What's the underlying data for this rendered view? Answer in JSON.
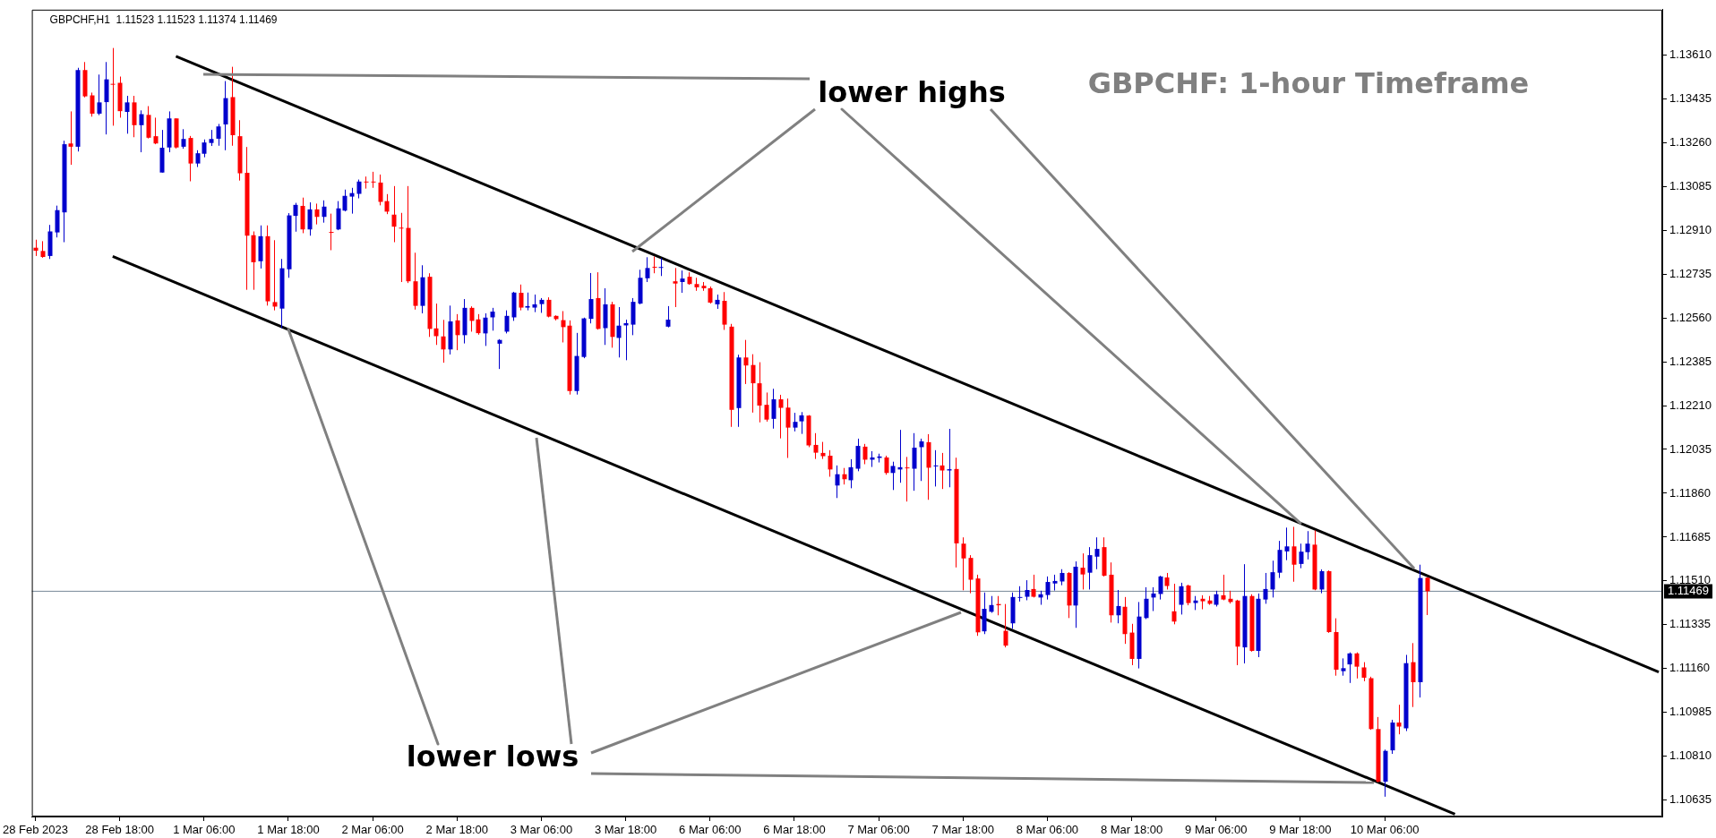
{
  "chart_data": {
    "type": "candlestick",
    "title": "GBPCHF: 1-hour Timeframe",
    "subtitle": "GBPCHF,H1  1.11523 1.11523 1.11374 1.11469",
    "annotations": [
      {
        "text": "lower highs",
        "x": "9 Mar 18:00",
        "y": 1.11741
      },
      {
        "text": "lower lows",
        "x": "1 Mar 18:00",
        "y": 1.12515
      }
    ],
    "categories": [
      "28 Feb 2023",
      null,
      null,
      null,
      null,
      null,
      null,
      null,
      null,
      null,
      null,
      null,
      "28 Feb 18:00",
      null,
      null,
      null,
      null,
      null,
      null,
      null,
      null,
      null,
      null,
      null,
      "1 Mar 06:00",
      null,
      null,
      null,
      null,
      null,
      null,
      null,
      null,
      null,
      null,
      null,
      "1 Mar 18:00",
      null,
      null,
      null,
      null,
      null,
      null,
      null,
      null,
      null,
      null,
      null,
      "2 Mar 06:00",
      null,
      null,
      null,
      null,
      null,
      null,
      null,
      null,
      null,
      null,
      null,
      "2 Mar 18:00",
      null,
      null,
      null,
      null,
      null,
      null,
      null,
      null,
      null,
      null,
      null,
      "3 Mar 06:00",
      null,
      null,
      null,
      null,
      null,
      null,
      null,
      null,
      null,
      null,
      null,
      "3 Mar 18:00",
      null,
      null,
      null,
      null,
      null,
      null,
      null,
      null,
      null,
      null,
      null,
      "6 Mar 06:00",
      null,
      null,
      null,
      null,
      null,
      null,
      null,
      null,
      null,
      null,
      null,
      "6 Mar 18:00",
      null,
      null,
      null,
      null,
      null,
      null,
      null,
      null,
      null,
      null,
      null,
      "7 Mar 06:00",
      null,
      null,
      null,
      null,
      null,
      null,
      null,
      null,
      null,
      null,
      null,
      "7 Mar 18:00",
      null,
      null,
      null,
      null,
      null,
      null,
      null,
      null,
      null,
      null,
      null,
      "8 Mar 06:00",
      null,
      null,
      null,
      null,
      null,
      null,
      null,
      null,
      null,
      null,
      null,
      "8 Mar 18:00",
      null,
      null,
      null,
      null,
      null,
      null,
      null,
      null,
      null,
      null,
      null,
      "9 Mar 06:00",
      null,
      null,
      null,
      null,
      null,
      null,
      null,
      null,
      null,
      null,
      null,
      "9 Mar 18:00",
      null,
      null,
      null,
      null,
      null,
      null,
      null,
      null,
      null,
      null,
      null,
      "10 Mar 06:00",
      null,
      null,
      null,
      null,
      null,
      null,
      null,
      null,
      null,
      null,
      null,
      null,
      null,
      null,
      null,
      null,
      null,
      null,
      null,
      null,
      null,
      null,
      null,
      null,
      null,
      null,
      null,
      null,
      null,
      null,
      null,
      null,
      null,
      null,
      null,
      null,
      null,
      null,
      null
    ],
    "ohlc": [
      [
        1.1284,
        1.12872,
        1.12807,
        1.12828
      ],
      [
        1.12827,
        1.12866,
        1.128,
        1.12803
      ],
      [
        1.12807,
        1.12931,
        1.12795,
        1.12905
      ],
      [
        1.12901,
        1.13008,
        1.12881,
        1.1299
      ],
      [
        1.12981,
        1.13267,
        1.12862,
        1.13253
      ],
      [
        1.13256,
        1.13384,
        1.13171,
        1.13243
      ],
      [
        1.13243,
        1.13558,
        1.13224,
        1.13549
      ],
      [
        1.13549,
        1.13581,
        1.1344,
        1.13444
      ],
      [
        1.13448,
        1.13459,
        1.13363,
        1.13375
      ],
      [
        1.13375,
        1.13531,
        1.13369,
        1.1342
      ],
      [
        1.13421,
        1.13581,
        1.13292,
        1.13512
      ],
      [
        1.13494,
        1.13637,
        1.13327,
        1.13492
      ],
      [
        1.13498,
        1.13523,
        1.13359,
        1.13385
      ],
      [
        1.13382,
        1.13446,
        1.13295,
        1.1342
      ],
      [
        1.1342,
        1.13446,
        1.13281,
        1.13329
      ],
      [
        1.13329,
        1.13388,
        1.13221,
        1.13373
      ],
      [
        1.1337,
        1.13405,
        1.13276,
        1.13279
      ],
      [
        1.13285,
        1.13359,
        1.13253,
        1.13256
      ],
      [
        1.1314,
        1.1331,
        1.1314,
        1.13239
      ],
      [
        1.1324,
        1.13384,
        1.13221,
        1.13356
      ],
      [
        1.13356,
        1.13356,
        1.13236,
        1.1324
      ],
      [
        1.13243,
        1.13313,
        1.13235,
        1.13274
      ],
      [
        1.13278,
        1.13286,
        1.13105,
        1.13176
      ],
      [
        1.13176,
        1.13229,
        1.13162,
        1.13217
      ],
      [
        1.13215,
        1.13272,
        1.13201,
        1.1326
      ],
      [
        1.13258,
        1.1331,
        1.13246,
        1.13274
      ],
      [
        1.13275,
        1.13334,
        1.13247,
        1.13324
      ],
      [
        1.13332,
        1.13505,
        1.13229,
        1.13437
      ],
      [
        1.13441,
        1.13562,
        1.13247,
        1.13289
      ],
      [
        1.13285,
        1.13349,
        1.13108,
        1.13137
      ],
      [
        1.13139,
        1.13242,
        1.12672,
        1.12888
      ],
      [
        1.1289,
        1.12905,
        1.12672,
        1.12782
      ],
      [
        1.12786,
        1.12929,
        1.12757,
        1.12886
      ],
      [
        1.12886,
        1.12929,
        1.12609,
        1.12626
      ],
      [
        1.12623,
        1.1287,
        1.1259,
        1.12605
      ],
      [
        1.12597,
        1.12795,
        1.12519,
        1.12758
      ],
      [
        1.12754,
        1.12978,
        1.1272,
        1.12969
      ],
      [
        1.12967,
        1.13019,
        1.12904,
        1.13011
      ],
      [
        1.13007,
        1.1304,
        1.12898,
        1.12913
      ],
      [
        1.12913,
        1.13021,
        1.12888,
        1.12993
      ],
      [
        1.12993,
        1.13016,
        1.12933,
        1.12963
      ],
      [
        1.12963,
        1.13029,
        1.1294,
        1.13004
      ],
      [
        1.12903,
        1.12976,
        1.1283,
        1.129
      ],
      [
        1.12913,
        1.13026,
        1.1291,
        1.12997
      ],
      [
        1.12988,
        1.13072,
        1.12985,
        1.13047
      ],
      [
        1.13044,
        1.13079,
        1.12976,
        1.13058
      ],
      [
        1.13055,
        1.13112,
        1.13037,
        1.13104
      ],
      [
        1.13104,
        1.13124,
        1.13076,
        1.13101
      ],
      [
        1.13104,
        1.13143,
        1.13079,
        1.13101
      ],
      [
        1.131,
        1.13132,
        1.13009,
        1.13023
      ],
      [
        1.13026,
        1.13054,
        1.12974,
        1.12984
      ],
      [
        1.12972,
        1.13086,
        1.12862,
        1.12924
      ],
      [
        1.1292,
        1.12979,
        1.12703,
        1.12918
      ],
      [
        1.12919,
        1.13086,
        1.12699,
        1.12706
      ],
      [
        1.12706,
        1.1282,
        1.12593,
        1.12608
      ],
      [
        1.12608,
        1.1277,
        1.12578,
        1.12722
      ],
      [
        1.12724,
        1.12738,
        1.12484,
        1.12516
      ],
      [
        1.12518,
        1.12617,
        1.12452,
        1.12487
      ],
      [
        1.12486,
        1.12552,
        1.12381,
        1.12434
      ],
      [
        1.12434,
        1.12609,
        1.12414,
        1.12546
      ],
      [
        1.1255,
        1.12575,
        1.12431,
        1.12491
      ],
      [
        1.12491,
        1.12635,
        1.12458,
        1.126
      ],
      [
        1.126,
        1.12606,
        1.12505,
        1.12548
      ],
      [
        1.12554,
        1.12575,
        1.12493,
        1.12499
      ],
      [
        1.12498,
        1.12578,
        1.12448,
        1.12561
      ],
      [
        1.12562,
        1.126,
        1.12509,
        1.12585
      ],
      [
        1.12457,
        1.12475,
        1.12356,
        1.12472
      ],
      [
        1.12505,
        1.1259,
        1.12498,
        1.12568
      ],
      [
        1.12562,
        1.12664,
        1.12548,
        1.12661
      ],
      [
        1.1266,
        1.12693,
        1.1259,
        1.12601
      ],
      [
        1.12601,
        1.12661,
        1.1259,
        1.12607
      ],
      [
        1.12601,
        1.12653,
        1.12583,
        1.12614
      ],
      [
        1.12615,
        1.12639,
        1.1258,
        1.12632
      ],
      [
        1.12632,
        1.12642,
        1.12562,
        1.12565
      ],
      [
        1.12568,
        1.1257,
        1.1255,
        1.12555
      ],
      [
        1.12551,
        1.12587,
        1.12462,
        1.12523
      ],
      [
        1.12529,
        1.1255,
        1.12254,
        1.12268
      ],
      [
        1.12268,
        1.125,
        1.12254,
        1.12408
      ],
      [
        1.12404,
        1.12561,
        1.12399,
        1.12558
      ],
      [
        1.12556,
        1.12739,
        1.12538,
        1.12635
      ],
      [
        1.12639,
        1.12742,
        1.12513,
        1.12516
      ],
      [
        1.12519,
        1.12678,
        1.12452,
        1.12614
      ],
      [
        1.12614,
        1.12624,
        1.12441,
        1.12484
      ],
      [
        1.1248,
        1.12603,
        1.12402,
        1.12529
      ],
      [
        1.1253,
        1.12553,
        1.12391,
        1.12539
      ],
      [
        1.12533,
        1.12639,
        1.12491,
        1.12624
      ],
      [
        1.12617,
        1.12752,
        1.12614,
        1.1272
      ],
      [
        1.12718,
        1.12802,
        1.12703,
        1.12759
      ],
      [
        1.12764,
        1.12805,
        1.12738,
        1.12762
      ],
      [
        1.1276,
        1.12798,
        1.12727,
        1.12763
      ],
      [
        1.12525,
        1.12607,
        1.12522,
        1.12553
      ],
      [
        1.12706,
        1.12759,
        1.12603,
        1.12697
      ],
      [
        1.12703,
        1.12749,
        1.1266,
        1.12717
      ],
      [
        1.12724,
        1.12742,
        1.12692,
        1.12695
      ],
      [
        1.12695,
        1.1272,
        1.12668,
        1.12682
      ],
      [
        1.12688,
        1.12703,
        1.12668,
        1.12678
      ],
      [
        1.12678,
        1.12685,
        1.12617,
        1.12621
      ],
      [
        1.12614,
        1.12653,
        1.12596,
        1.12632
      ],
      [
        1.12628,
        1.12663,
        1.12512,
        1.12533
      ],
      [
        1.12525,
        1.12536,
        1.12125,
        1.12193
      ],
      [
        1.122,
        1.12413,
        1.12125,
        1.12402
      ],
      [
        1.12402,
        1.12472,
        1.12296,
        1.1237
      ],
      [
        1.12372,
        1.12415,
        1.12182,
        1.12299
      ],
      [
        1.12299,
        1.12383,
        1.12143,
        1.1221
      ],
      [
        1.12213,
        1.12262,
        1.12146,
        1.12154
      ],
      [
        1.12157,
        1.12277,
        1.12118,
        1.12235
      ],
      [
        1.12235,
        1.12253,
        1.12079,
        1.12201
      ],
      [
        1.12202,
        1.12238,
        1.12001,
        1.12122
      ],
      [
        1.12122,
        1.12181,
        1.12107,
        1.12145
      ],
      [
        1.12147,
        1.12184,
        1.12097,
        1.12171
      ],
      [
        1.1217,
        1.12172,
        1.12044,
        1.12051
      ],
      [
        1.12053,
        1.121,
        1.11997,
        1.12022
      ],
      [
        1.12021,
        1.12065,
        1.11997,
        1.12008
      ],
      [
        1.1201,
        1.12032,
        1.11926,
        1.11955
      ],
      [
        1.11891,
        1.11971,
        1.11841,
        1.11936
      ],
      [
        1.11936,
        1.11961,
        1.11895,
        1.11916
      ],
      [
        1.11912,
        1.11996,
        1.1188,
        1.11964
      ],
      [
        1.11958,
        1.12078,
        1.11948,
        1.12049
      ],
      [
        1.12046,
        1.12057,
        1.11976,
        1.11994
      ],
      [
        1.11994,
        1.12028,
        1.11965,
        1.12003
      ],
      [
        1.12001,
        1.12018,
        1.11983,
        1.12007
      ],
      [
        1.12003,
        1.1201,
        1.11934,
        1.11941
      ],
      [
        1.11941,
        1.11986,
        1.11873,
        1.11969
      ],
      [
        1.11955,
        1.12113,
        1.11902,
        1.11964
      ],
      [
        1.11963,
        1.12005,
        1.11827,
        1.11961
      ],
      [
        1.11958,
        1.121,
        1.1187,
        1.12042
      ],
      [
        1.12044,
        1.12078,
        1.11909,
        1.12067
      ],
      [
        1.12064,
        1.12096,
        1.11834,
        1.11962
      ],
      [
        1.11969,
        1.12032,
        1.11887,
        1.11971
      ],
      [
        1.11971,
        1.12021,
        1.11877,
        1.11951
      ],
      [
        1.11951,
        1.12117,
        1.11884,
        1.11956
      ],
      [
        1.11957,
        1.12002,
        1.11564,
        1.1166
      ],
      [
        1.11659,
        1.11684,
        1.11473,
        1.116
      ],
      [
        1.11602,
        1.11613,
        1.11461,
        1.11515
      ],
      [
        1.1152,
        1.11535,
        1.11291,
        1.11305
      ],
      [
        1.11309,
        1.11464,
        1.11298,
        1.11399
      ],
      [
        1.11387,
        1.1145,
        1.11383,
        1.11414
      ],
      [
        1.11418,
        1.1145,
        1.11373,
        1.11413
      ],
      [
        1.11311,
        1.11418,
        1.11245,
        1.11252
      ],
      [
        1.11341,
        1.11464,
        1.11319,
        1.11446
      ],
      [
        1.11444,
        1.11489,
        1.11428,
        1.11446
      ],
      [
        1.11447,
        1.11513,
        1.11433,
        1.11474
      ],
      [
        1.11478,
        1.11535,
        1.11444,
        1.11447
      ],
      [
        1.11444,
        1.11471,
        1.11415,
        1.11457
      ],
      [
        1.11454,
        1.11528,
        1.11436,
        1.11506
      ],
      [
        1.115,
        1.11535,
        1.11472,
        1.1151
      ],
      [
        1.11508,
        1.11557,
        1.11493,
        1.11542
      ],
      [
        1.11542,
        1.11545,
        1.11362,
        1.11412
      ],
      [
        1.11412,
        1.11588,
        1.11323,
        1.11567
      ],
      [
        1.11563,
        1.1162,
        1.11476,
        1.11536
      ],
      [
        1.11543,
        1.11645,
        1.11476,
        1.11613
      ],
      [
        1.11607,
        1.11684,
        1.11557,
        1.11638
      ],
      [
        1.11645,
        1.11684,
        1.11528,
        1.11531
      ],
      [
        1.11535,
        1.11584,
        1.11344,
        1.11373
      ],
      [
        1.11373,
        1.11474,
        1.11341,
        1.1141
      ],
      [
        1.11407,
        1.11446,
        1.11259,
        1.11298
      ],
      [
        1.11304,
        1.11339,
        1.11174,
        1.11199
      ],
      [
        1.11199,
        1.11426,
        1.11161,
        1.11368
      ],
      [
        1.11362,
        1.11485,
        1.11358,
        1.11439
      ],
      [
        1.11444,
        1.11485,
        1.1139,
        1.1146
      ],
      [
        1.11458,
        1.11531,
        1.11436,
        1.11528
      ],
      [
        1.11524,
        1.11542,
        1.11476,
        1.1149
      ],
      [
        1.11389,
        1.11499,
        1.11337,
        1.11348
      ],
      [
        1.11415,
        1.11503,
        1.11376,
        1.11489
      ],
      [
        1.11492,
        1.11495,
        1.11413,
        1.11422
      ],
      [
        1.11422,
        1.1145,
        1.11394,
        1.11432
      ],
      [
        1.11439,
        1.11453,
        1.11397,
        1.11429
      ],
      [
        1.11432,
        1.1145,
        1.11415,
        1.11419
      ],
      [
        1.11415,
        1.11471,
        1.11408,
        1.11457
      ],
      [
        1.11453,
        1.11535,
        1.11433,
        1.11436
      ],
      [
        1.11439,
        1.11471,
        1.1142,
        1.11426
      ],
      [
        1.11432,
        1.11435,
        1.11174,
        1.11248
      ],
      [
        1.11245,
        1.11577,
        1.11181,
        1.1145
      ],
      [
        1.1145,
        1.11457,
        1.11228,
        1.11231
      ],
      [
        1.11231,
        1.1146,
        1.11206,
        1.11439
      ],
      [
        1.11436,
        1.11542,
        1.11419,
        1.11478
      ],
      [
        1.11476,
        1.11591,
        1.11444,
        1.11545
      ],
      [
        1.11543,
        1.1167,
        1.11522,
        1.11634
      ],
      [
        1.11628,
        1.11723,
        1.11593,
        1.11648
      ],
      [
        1.11648,
        1.11726,
        1.11507,
        1.11575
      ],
      [
        1.11578,
        1.11659,
        1.11561,
        1.11627
      ],
      [
        1.11625,
        1.11709,
        1.11596,
        1.11659
      ],
      [
        1.11655,
        1.11712,
        1.11473,
        1.11476
      ],
      [
        1.11476,
        1.11556,
        1.11461,
        1.11549
      ],
      [
        1.11549,
        1.11552,
        1.11303,
        1.11306
      ],
      [
        1.11306,
        1.11361,
        1.11132,
        1.11156
      ],
      [
        1.1115,
        1.11201,
        1.11132,
        1.11162
      ],
      [
        1.11177,
        1.11225,
        1.11103,
        1.11221
      ],
      [
        1.11221,
        1.11225,
        1.11121,
        1.11168
      ],
      [
        1.11165,
        1.11186,
        1.1111,
        1.11124
      ],
      [
        1.11122,
        1.11128,
        1.10916,
        1.10919
      ],
      [
        1.10919,
        1.10967,
        1.10706,
        1.10709
      ],
      [
        1.10709,
        1.10837,
        1.10649,
        1.10832
      ],
      [
        1.10834,
        1.10956,
        1.1082,
        1.10945
      ],
      [
        1.10945,
        1.11016,
        1.10898,
        1.10929
      ],
      [
        1.10922,
        1.11215,
        1.10911,
        1.11182
      ],
      [
        1.11186,
        1.11262,
        1.11007,
        1.11106
      ],
      [
        1.11106,
        1.11575,
        1.11045,
        1.11522
      ],
      [
        1.11523,
        1.11523,
        1.11374,
        1.11469
      ],
      null,
      null,
      null,
      null,
      null,
      null,
      null,
      null,
      null,
      null,
      null,
      null,
      null,
      null,
      null,
      null,
      null,
      null,
      null,
      null,
      null,
      null,
      null,
      null,
      null,
      null,
      null,
      null,
      null,
      null,
      null,
      null,
      null
    ],
    "series": [
      {
        "type": "line",
        "color": "#000000",
        "values": [
          null,
          null,
          null,
          null,
          null,
          null,
          null,
          null,
          null,
          null,
          null,
          null,
          null,
          null,
          null,
          null,
          null,
          null,
          null,
          null,
          1.13604,
          null,
          null,
          null,
          null,
          null,
          null,
          null,
          null,
          null,
          null,
          null,
          null,
          null,
          null,
          null,
          null,
          null,
          null,
          null,
          null,
          null,
          null,
          null,
          null,
          null,
          null,
          null,
          null,
          null,
          null,
          null,
          null,
          null,
          null,
          null,
          null,
          null,
          null,
          null,
          null,
          null,
          null,
          null,
          null,
          null,
          null,
          null,
          null,
          null,
          null,
          null,
          null,
          null,
          null,
          null,
          null,
          null,
          null,
          null,
          null,
          null,
          null,
          null,
          null,
          null,
          null,
          null,
          null,
          null,
          null,
          null,
          null,
          null,
          null,
          null,
          null,
          null,
          null,
          null,
          null,
          null,
          null,
          null,
          null,
          null,
          null,
          null,
          null,
          null,
          null,
          null,
          null,
          null,
          null,
          null,
          null,
          null,
          null,
          null,
          null,
          null,
          null,
          null,
          null,
          null,
          null,
          null,
          null,
          null,
          null,
          null,
          null,
          null,
          null,
          null,
          null,
          null,
          null,
          null,
          null,
          null,
          null,
          null,
          null,
          null,
          null,
          null,
          null,
          null,
          null,
          null,
          null,
          null,
          null,
          null,
          null,
          null,
          null,
          null,
          null,
          null,
          null,
          null,
          null,
          null,
          null,
          null,
          null,
          null,
          null,
          null,
          null,
          null,
          null,
          null,
          null,
          null,
          null,
          null,
          null,
          null,
          null,
          null,
          null,
          null,
          null,
          null,
          null,
          null,
          null,
          null,
          null,
          null,
          null,
          null,
          null,
          null,
          null,
          null,
          null,
          null,
          null,
          null,
          null,
          null,
          null,
          null,
          null,
          null,
          null,
          null,
          null,
          null,
          null,
          null,
          null,
          null,
          null,
          null,
          null,
          null,
          null,
          null,
          null,
          null,
          null,
          null,
          null,
          null,
          null,
          1.11147
        ]
      },
      {
        "type": "line",
        "color": "#000000",
        "values": [
          null,
          null,
          null,
          null,
          null,
          null,
          null,
          null,
          null,
          null,
          null,
          1.12805,
          null,
          null,
          null,
          null,
          null,
          null,
          null,
          null,
          null,
          null,
          null,
          null,
          null,
          null,
          null,
          null,
          null,
          null,
          null,
          null,
          null,
          null,
          null,
          null,
          null,
          null,
          null,
          null,
          null,
          null,
          null,
          null,
          null,
          null,
          null,
          null,
          null,
          null,
          null,
          null,
          null,
          null,
          null,
          null,
          null,
          null,
          null,
          null,
          null,
          null,
          null,
          null,
          null,
          null,
          null,
          null,
          null,
          null,
          null,
          null,
          null,
          null,
          null,
          null,
          null,
          null,
          null,
          null,
          null,
          null,
          null,
          null,
          null,
          null,
          null,
          null,
          null,
          null,
          null,
          null,
          null,
          null,
          null,
          null,
          null,
          null,
          null,
          null,
          null,
          null,
          null,
          null,
          null,
          null,
          null,
          null,
          null,
          null,
          null,
          null,
          null,
          null,
          null,
          null,
          null,
          null,
          null,
          null,
          null,
          null,
          null,
          null,
          null,
          null,
          null,
          null,
          null,
          null,
          null,
          null,
          null,
          null,
          null,
          null,
          null,
          null,
          null,
          null,
          null,
          null,
          null,
          null,
          null,
          null,
          null,
          null,
          null,
          null,
          null,
          null,
          null,
          null,
          null,
          null,
          null,
          null,
          null,
          null,
          null,
          null,
          null,
          null,
          null,
          null,
          null,
          null,
          null,
          null,
          null,
          null,
          null,
          null,
          null,
          null,
          null,
          null,
          null,
          null,
          null,
          null,
          null,
          null,
          null,
          null,
          null,
          null,
          null,
          null,
          null,
          null,
          null,
          null,
          null,
          null,
          null,
          null,
          null,
          null,
          null,
          null,
          1.10579,
          null,
          null,
          null,
          null,
          null,
          null,
          null,
          null,
          null,
          null,
          null,
          null,
          null,
          null,
          null,
          null,
          null,
          null,
          null,
          null,
          null,
          null,
          null,
          null,
          null,
          null,
          null,
          null,
          null
        ]
      }
    ],
    "ylim": [
      1.1057,
      1.1379
    ],
    "yticks": [
      {
        "value": 1.1361,
        "label": "1.13610"
      },
      {
        "value": 1.13435,
        "label": "1.13435"
      },
      {
        "value": 1.1326,
        "label": "1.13260"
      },
      {
        "value": 1.13085,
        "label": "1.13085"
      },
      {
        "value": 1.1291,
        "label": "1.12910"
      },
      {
        "value": 1.12735,
        "label": "1.12735"
      },
      {
        "value": 1.1256,
        "label": "1.12560"
      },
      {
        "value": 1.12385,
        "label": "1.12385"
      },
      {
        "value": 1.1221,
        "label": "1.12210"
      },
      {
        "value": 1.12035,
        "label": "1.12035"
      },
      {
        "value": 1.1186,
        "label": "1.11860"
      },
      {
        "value": 1.11685,
        "label": "1.11685"
      },
      {
        "value": 1.1151,
        "label": "1.11510"
      },
      {
        "value": 1.11335,
        "label": "1.11335"
      },
      {
        "value": 1.1116,
        "label": "1.11160"
      },
      {
        "value": 1.10985,
        "label": "1.10985"
      },
      {
        "value": 1.1081,
        "label": "1.10810"
      },
      {
        "value": 1.10635,
        "label": "1.10635"
      }
    ],
    "ref_lines": [
      {
        "axis": "y",
        "value": 1.11469,
        "label": "1.11469",
        "color": "#778899"
      }
    ],
    "grid": false,
    "legend": false
  }
}
